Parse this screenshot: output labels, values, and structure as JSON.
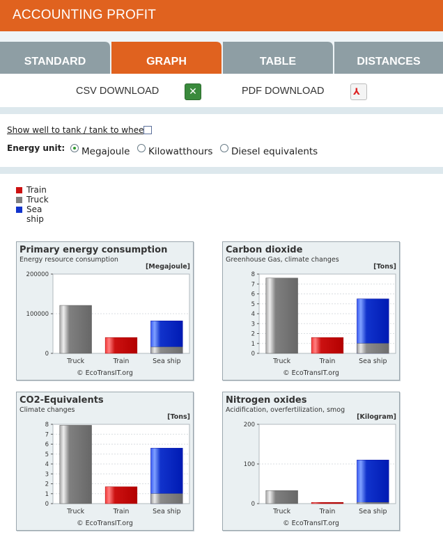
{
  "header": {
    "title": "ACCOUNTING PROFIT"
  },
  "tabs": [
    {
      "label": "STANDARD",
      "active": false
    },
    {
      "label": "GRAPH",
      "active": true
    },
    {
      "label": "TABLE",
      "active": false
    },
    {
      "label": "DISTANCES",
      "active": false
    }
  ],
  "downloads": {
    "csv_label": "CSV DOWNLOAD",
    "csv_icon": "excel-icon",
    "pdf_label": "PDF DOWNLOAD",
    "pdf_icon": "pdf-icon"
  },
  "options": {
    "well_to_wheel_label": "Show well to tank / tank to wheel",
    "well_to_wheel_checked": false,
    "energy_unit_label": "Energy unit:",
    "units": [
      "Megajoule",
      "Kilowatthours",
      "Diesel equivalents"
    ],
    "selected_unit": "Megajoule"
  },
  "legend": [
    {
      "name": "Train",
      "color": "#cc1111"
    },
    {
      "name": "Truck",
      "color": "#808080"
    },
    {
      "name": "Sea ship",
      "color": "#1133cc"
    }
  ],
  "copyright": "© EcoTransIT.org",
  "chart_data": [
    {
      "type": "bar",
      "title": "Primary energy consumption",
      "subtitle": "Energy resource consumption",
      "unit": "[Megajoule]",
      "categories": [
        "Truck",
        "Train",
        "Sea ship"
      ],
      "yticks": [
        "0",
        "100000",
        "200000"
      ],
      "ylim": [
        0,
        200000
      ],
      "values": [
        121000,
        40000,
        82000
      ],
      "lower_values": [
        0,
        0,
        16000
      ],
      "colors": [
        "#808080",
        "#cc1111",
        "#1133cc"
      ]
    },
    {
      "type": "bar",
      "title": "Carbon dioxide",
      "subtitle": "Greenhouse Gas, climate changes",
      "unit": "[Tons]",
      "categories": [
        "Truck",
        "Train",
        "Sea ship"
      ],
      "yticks": [
        "0",
        "1",
        "2",
        "3",
        "4",
        "5",
        "6",
        "7",
        "8"
      ],
      "ylim": [
        0,
        8
      ],
      "values": [
        7.6,
        1.6,
        5.5
      ],
      "lower_values": [
        0,
        0,
        1.0
      ],
      "colors": [
        "#808080",
        "#cc1111",
        "#1133cc"
      ]
    },
    {
      "type": "bar",
      "title": "CO2-Equivalents",
      "subtitle": "Climate changes",
      "unit": "[Tons]",
      "categories": [
        "Truck",
        "Train",
        "Sea ship"
      ],
      "yticks": [
        "0",
        "1",
        "2",
        "3",
        "4",
        "5",
        "6",
        "7",
        "8"
      ],
      "ylim": [
        0,
        8
      ],
      "values": [
        7.9,
        1.7,
        5.6
      ],
      "lower_values": [
        0,
        0,
        1.0
      ],
      "colors": [
        "#808080",
        "#cc1111",
        "#1133cc"
      ]
    },
    {
      "type": "bar",
      "title": "Nitrogen oxides",
      "subtitle": "Acidification, overfertilization, smog",
      "unit": "[Kilogram]",
      "categories": [
        "Truck",
        "Train",
        "Sea ship"
      ],
      "yticks": [
        "0",
        "100",
        "200"
      ],
      "ylim": [
        0,
        200
      ],
      "values": [
        33,
        3,
        110
      ],
      "lower_values": [
        0,
        0,
        3
      ],
      "colors": [
        "#808080",
        "#cc1111",
        "#1133cc"
      ]
    }
  ]
}
